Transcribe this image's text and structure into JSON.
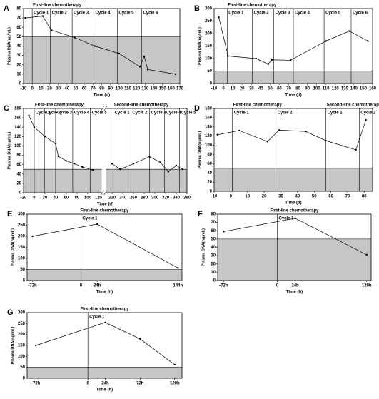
{
  "chart_data": [
    {
      "type": "line",
      "panel": "A",
      "xlabel": "Time (d)",
      "ylabel": "Plasma DNA(ng/mL)",
      "xlim": [
        -10,
        170
      ],
      "xticks": [
        -10,
        0,
        10,
        20,
        30,
        40,
        50,
        60,
        70,
        80,
        90,
        100,
        110,
        120,
        130,
        140,
        150,
        160,
        170
      ],
      "ylim": [
        0,
        80
      ],
      "yticks": [
        0,
        10,
        20,
        30,
        40,
        50,
        60,
        70,
        80
      ],
      "shade_below": 50,
      "cycle_groups": [
        {
          "title": "First-line chemotherapy",
          "starts": [
            0,
            21,
            46,
            71,
            98,
            126
          ],
          "labels": [
            "Cycle 1",
            "Cycle 2",
            "Cycle 3",
            "Cycle 4",
            "Cycle 5",
            "Cycle 6"
          ]
        }
      ],
      "series": [
        {
          "color": "#000000",
          "x": [
            -8,
            12,
            22,
            49,
            72,
            100,
            124,
            129,
            133,
            165
          ],
          "values": [
            70,
            72,
            57,
            49,
            40,
            32,
            18,
            29,
            15,
            10
          ]
        }
      ]
    },
    {
      "type": "line",
      "panel": "B",
      "xlabel": "Time (d)",
      "ylabel": "Plasma DNA(ng/mL)",
      "xlim": [
        -10,
        160
      ],
      "xticks": [
        -10,
        0,
        10,
        20,
        30,
        40,
        50,
        60,
        70,
        80,
        90,
        100,
        110,
        120,
        130,
        140,
        150,
        160
      ],
      "ylim": [
        0,
        300
      ],
      "yticks": [
        0,
        50,
        100,
        150,
        200,
        250,
        300
      ],
      "shade_below": 50,
      "cycle_groups": [
        {
          "title": "First-line chemotherapy",
          "starts": [
            4,
            31,
            54,
            75,
            108,
            137
          ],
          "labels": [
            "Cycle 1",
            "Cycle 2",
            "Cycle 3",
            "Cycle 4",
            "Cycle 5",
            "Cycle 6"
          ]
        }
      ],
      "series": [
        {
          "color": "#000000",
          "x": [
            -5,
            5,
            35,
            48,
            52,
            72,
            110,
            135,
            155
          ],
          "values": [
            265,
            110,
            100,
            78,
            95,
            93,
            170,
            210,
            170
          ]
        }
      ]
    },
    {
      "type": "line",
      "panel": "C",
      "xlabel": "Time (d)",
      "ylabel": "Plasma DNA(ng/mL)",
      "xlim": [
        -20,
        360
      ],
      "x_break": [
        125,
        210
      ],
      "xticks": [
        -20,
        0,
        20,
        40,
        60,
        80,
        100,
        120,
        220,
        240,
        260,
        280,
        300,
        320,
        340,
        360
      ],
      "ylim": [
        0,
        180
      ],
      "yticks": [
        0,
        20,
        40,
        60,
        80,
        100,
        120,
        140,
        160,
        180
      ],
      "shade_below": 50,
      "cycle_groups": [
        {
          "title": "First-line chemotherapy",
          "starts": [
            0,
            19,
            40,
            72,
            105
          ],
          "labels": [
            "Cycle 1",
            "Cycle 2",
            "Cycle 3",
            "Cycle 4",
            "Cycle 5"
          ]
        },
        {
          "title": "Second-line chemotherapy",
          "starts": [
            222,
            255,
            290,
            318,
            346
          ],
          "labels": [
            "Cycle 1",
            "Cycle 2",
            "Cycle 3",
            "Cycle 4",
            "Cycle 5"
          ]
        }
      ],
      "series": [
        {
          "color": "#000000",
          "x": [
            -10,
            0,
            20,
            40,
            45,
            60,
            75,
            90,
            110
          ],
          "values": [
            165,
            140,
            120,
            105,
            78,
            68,
            62,
            55,
            48
          ]
        },
        {
          "color": "#000000",
          "x": [
            220,
            235,
            260,
            290,
            310,
            325,
            340,
            352
          ],
          "values": [
            62,
            50,
            62,
            77,
            65,
            45,
            58,
            50
          ]
        }
      ]
    },
    {
      "type": "line",
      "panel": "D",
      "xlabel": "Time (d)",
      "ylabel": "Plasma DNA(ng/mL)",
      "xlim": [
        -10,
        85
      ],
      "xticks": [
        -10,
        0,
        10,
        20,
        30,
        40,
        50,
        60,
        70,
        80
      ],
      "ylim": [
        0,
        180
      ],
      "yticks": [
        0,
        20,
        40,
        60,
        80,
        100,
        120,
        140,
        160,
        180
      ],
      "shade_below": 50,
      "cycle_groups": [
        {
          "title": "First-line chemotherapy",
          "starts": [
            1,
            27
          ],
          "labels": [
            "Cycle 1",
            "Cycle 2"
          ]
        },
        {
          "title": "Second-line chemotherapy",
          "starts": [
            57,
            77
          ],
          "labels": [
            "Cycle 1",
            "Cycle 2"
          ]
        }
      ],
      "series": [
        {
          "color": "#000000",
          "x": [
            -8,
            5,
            22,
            29,
            45,
            57,
            75,
            81
          ],
          "values": [
            123,
            132,
            108,
            133,
            130,
            110,
            90,
            155
          ]
        }
      ]
    },
    {
      "type": "line",
      "panel": "E",
      "xlabel": "Time (h)",
      "ylabel": "Plasma DNA(ng/mL)",
      "xlim": [
        -80,
        150
      ],
      "xticks": [
        {
          "value": -72,
          "label": "-72h"
        },
        0,
        {
          "value": 24,
          "label": "24h"
        },
        {
          "value": 144,
          "label": "144h"
        }
      ],
      "ylim": [
        0,
        300
      ],
      "yticks": [
        0,
        50,
        100,
        150,
        200,
        250,
        300
      ],
      "shade_below": 50,
      "cycle_groups": [
        {
          "title": "First-line chemotherapy",
          "starts": [
            0
          ],
          "labels": [
            "Cycle 1"
          ]
        }
      ],
      "series": [
        {
          "color": "#000000",
          "x": [
            -72,
            24,
            144
          ],
          "values": [
            200,
            255,
            57
          ]
        }
      ]
    },
    {
      "type": "line",
      "panel": "F",
      "xlabel": "Time (h)",
      "ylabel": "Plasma DNA(ng/mL)",
      "xlim": [
        -80,
        126
      ],
      "xticks": [
        {
          "value": -72,
          "label": "-72h"
        },
        0,
        {
          "value": 24,
          "label": "24h"
        },
        {
          "value": 120,
          "label": "120h"
        }
      ],
      "ylim": [
        0,
        80
      ],
      "yticks": [
        0,
        10,
        20,
        30,
        40,
        50,
        60,
        70,
        80
      ],
      "shade_below": 50,
      "cycle_groups": [
        {
          "title": "First-line chemotherapy",
          "starts": [
            0
          ],
          "labels": [
            "Cycle 1"
          ]
        }
      ],
      "series": [
        {
          "color": "#000000",
          "x": [
            -72,
            24,
            120
          ],
          "values": [
            59,
            75,
            31
          ]
        }
      ]
    },
    {
      "type": "line",
      "panel": "G",
      "xlabel": "Time (h)",
      "ylabel": "Plasma DNA(ng/mL)",
      "xlim": [
        -84,
        130
      ],
      "xticks": [
        {
          "value": -72,
          "label": "-72h"
        },
        0,
        {
          "value": 24,
          "label": "24h"
        },
        {
          "value": 72,
          "label": "72h"
        },
        {
          "value": 120,
          "label": "120h"
        }
      ],
      "ylim": [
        0,
        300
      ],
      "yticks": [
        0,
        50,
        100,
        150,
        200,
        250,
        300
      ],
      "shade_below": 50,
      "cycle_groups": [
        {
          "title": "First-line chemotherapy",
          "starts": [
            0
          ],
          "labels": [
            "Cycle 1"
          ]
        }
      ],
      "series": [
        {
          "color": "#000000",
          "x": [
            -72,
            24,
            72,
            120
          ],
          "values": [
            150,
            255,
            180,
            62
          ]
        }
      ]
    }
  ]
}
